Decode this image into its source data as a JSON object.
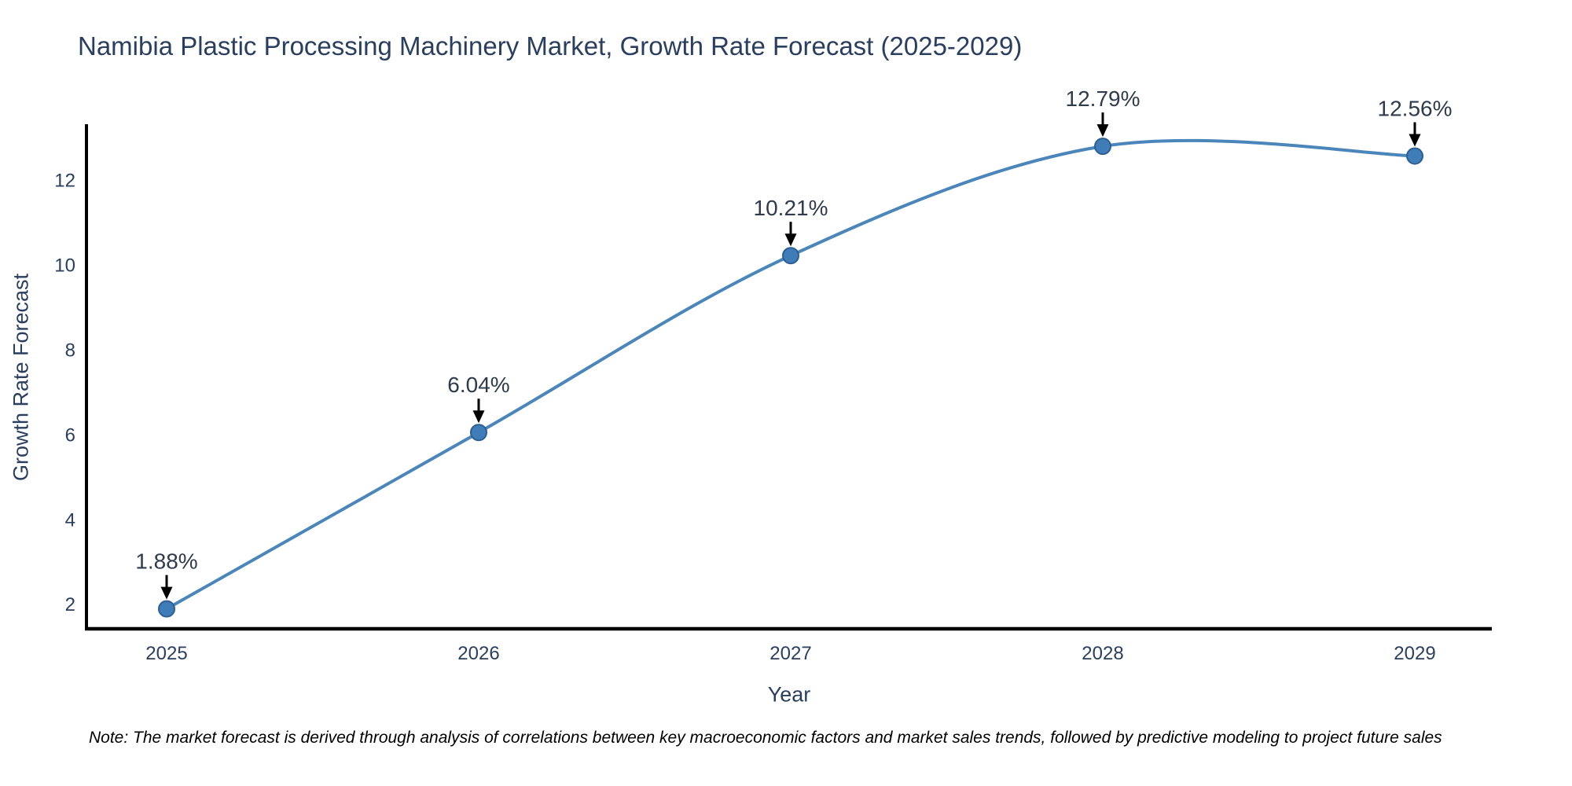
{
  "chart_data": {
    "type": "line",
    "title": "Namibia Plastic Processing Machinery Market, Growth Rate Forecast (2025-2029)",
    "xlabel": "Year",
    "ylabel": "Growth Rate Forecast",
    "x": [
      2025,
      2026,
      2027,
      2028,
      2029
    ],
    "categories": [
      "2025",
      "2026",
      "2027",
      "2028",
      "2029"
    ],
    "values": [
      1.88,
      6.04,
      10.21,
      12.79,
      12.56
    ],
    "point_labels": [
      "1.88%",
      "6.04%",
      "10.21%",
      "12.79%",
      "12.56%"
    ],
    "yticks": [
      2,
      4,
      6,
      8,
      10,
      12
    ],
    "ylim": [
      1.41,
      13.31
    ],
    "line_shape": "spline",
    "grid": false,
    "legend": "none",
    "colors": {
      "line": "#4b86bb",
      "marker_fill": "#3f7db8",
      "marker_stroke": "#2d5f94",
      "axis": "#000000",
      "tick_text": "#2a3f5f",
      "annotation_text": "#2f3b4c",
      "annotation_arrow": "#000000"
    }
  },
  "note": "Note: The market forecast is derived through analysis of correlations between key macroeconomic factors and market sales trends, followed by predictive modeling to project future sales"
}
